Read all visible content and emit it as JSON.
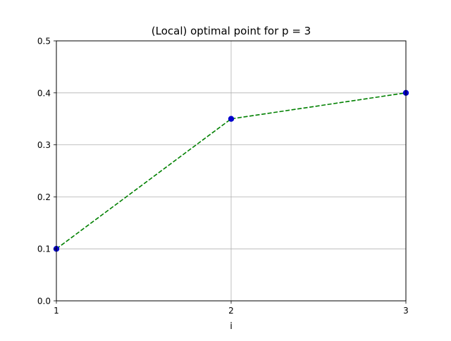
{
  "chart_data": {
    "type": "line",
    "title": "(Local) optimal point for p = 3",
    "xlabel": "i",
    "ylabel": "",
    "x": [
      1,
      2,
      3
    ],
    "series": [
      {
        "values": [
          0.1,
          0.35,
          0.4
        ],
        "line_color": "#008000",
        "line_style": "dashed",
        "marker_color": "#0000cc"
      }
    ],
    "xlim": [
      1,
      3
    ],
    "ylim": [
      0,
      0.5
    ],
    "xticks": [
      1,
      2,
      3
    ],
    "xtick_labels": [
      "1",
      "2",
      "3"
    ],
    "yticks": [
      0,
      0.1,
      0.2,
      0.3,
      0.4,
      0.5
    ],
    "ytick_labels": [
      "0.0",
      "0.1",
      "0.2",
      "0.3",
      "0.4",
      "0.5"
    ],
    "grid": true,
    "legend": "none"
  }
}
